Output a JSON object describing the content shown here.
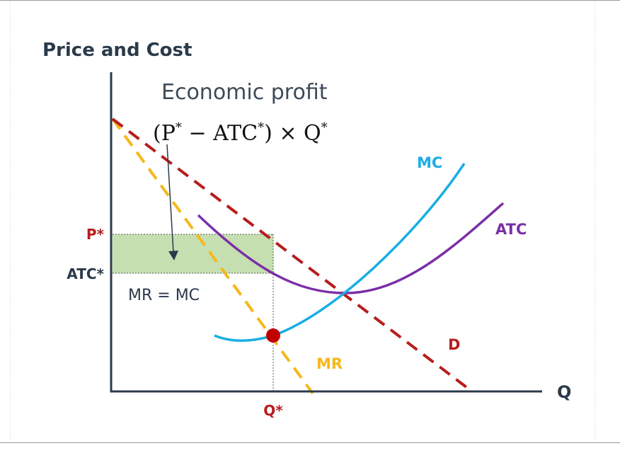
{
  "diagram": {
    "title": "Price and Cost",
    "x_axis_label": "Q",
    "annotation": {
      "label": "Economic profit",
      "formula": {
        "open_paren": "(",
        "p": "P",
        "star": "*",
        "minus": " − ",
        "atc": "ATC",
        "close_times": ") × ",
        "q": "Q"
      }
    },
    "price_label": "P*",
    "atc_label": "ATC*",
    "quantity_label": "Q*",
    "condition_label": "MR = MC",
    "curves": {
      "mc": "MC",
      "atc": "ATC",
      "mr": "MR",
      "demand": "D"
    },
    "colors": {
      "demand": "#b71c1c",
      "mr": "#f6b81a",
      "mc": "#19aee3",
      "atc": "#7b2fa6",
      "profit_area": "#c6dfb0",
      "axes": "#2b3a4a"
    }
  }
}
